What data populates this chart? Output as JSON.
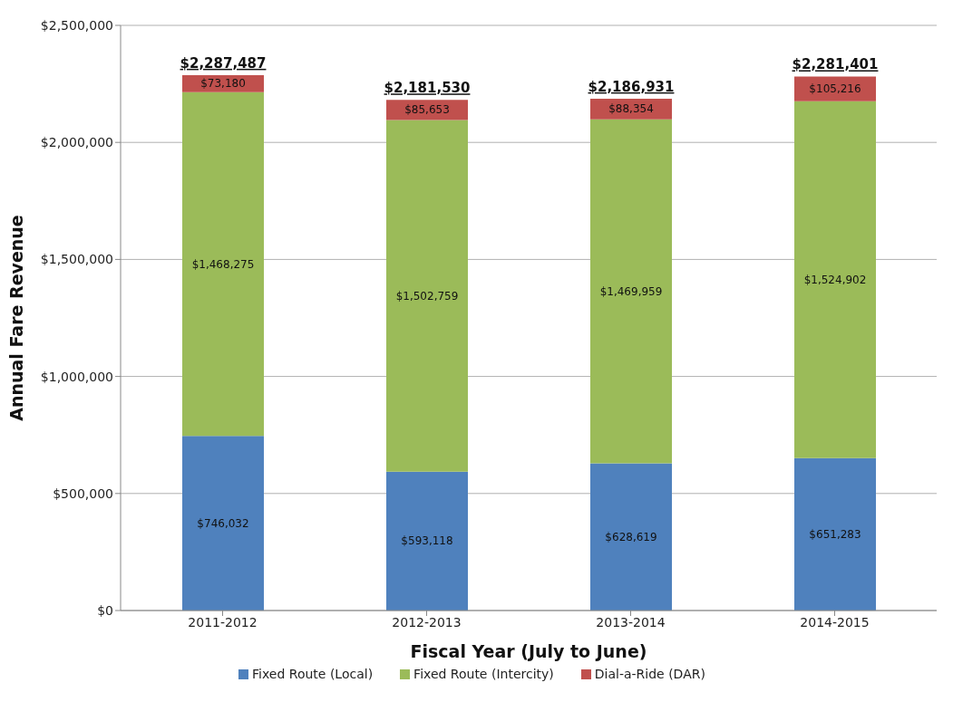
{
  "chart_data": {
    "type": "bar",
    "stacked": true,
    "xlabel": "Fiscal Year (July to June)",
    "ylabel": "Annual  Fare Revenue",
    "categories": [
      "2011-2012",
      "2012-2013",
      "2013-2014",
      "2014-2015"
    ],
    "series": [
      {
        "name": "Fixed Route (Local)",
        "color": "#4f81bd",
        "values": [
          746032,
          593118,
          628619,
          651283
        ],
        "value_labels": [
          "$746,032",
          "$593,118",
          "$628,619",
          "$651,283"
        ]
      },
      {
        "name": "Fixed Route (Intercity)",
        "color": "#9bbb59",
        "values": [
          1468275,
          1502759,
          1469959,
          1524902
        ],
        "value_labels": [
          "$1,468,275",
          "$1,502,759",
          "$1,469,959",
          "$1,524,902"
        ]
      },
      {
        "name": "Dial-a-Ride (DAR)",
        "color": "#c0504d",
        "values": [
          73180,
          85653,
          88354,
          105216
        ],
        "value_labels": [
          "$73,180",
          "$85,653",
          "$88,354",
          "$105,216"
        ]
      }
    ],
    "totals": [
      "$2,287,487",
      "$2,181,530",
      "$2,186,931",
      "$2,281,401"
    ],
    "ylim": [
      0,
      2500000
    ],
    "yticks": [
      {
        "value": 0,
        "label": "$0"
      },
      {
        "value": 500000,
        "label": "$500,000"
      },
      {
        "value": 1000000,
        "label": "$1,000,000"
      },
      {
        "value": 1500000,
        "label": "$1,500,000"
      },
      {
        "value": 2000000,
        "label": "$2,000,000"
      },
      {
        "value": 2500000,
        "label": "$2,500,000"
      }
    ],
    "grid": "y",
    "legend": "bottom"
  }
}
